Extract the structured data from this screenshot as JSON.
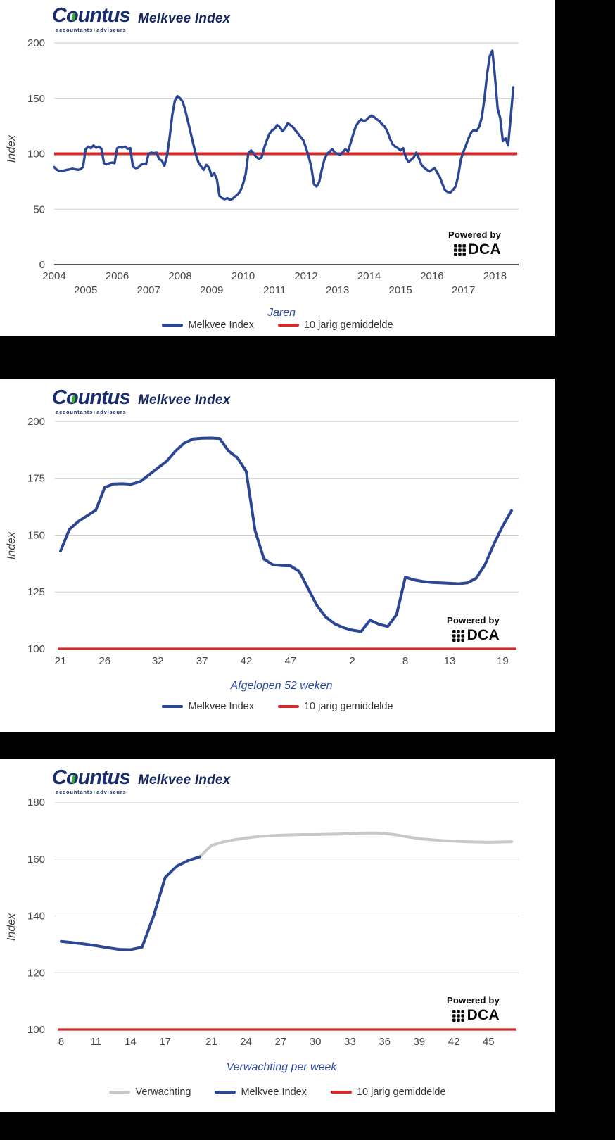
{
  "branding": {
    "logo_prefix": "C",
    "logo_o": "o",
    "logo_suffix": "untus",
    "logo_subtext_left": "accountants",
    "logo_subtext_sep": "+",
    "logo_subtext_right": "adviseurs",
    "powered_by": "Powered by",
    "dca": "DCA"
  },
  "colors": {
    "index_line": "#2b4694",
    "average_line": "#d22b2b",
    "forecast_line": "#c8c8c8",
    "grid": "#cccccc",
    "axis_line": "#1a1a1a",
    "axis_text": "#474747",
    "axis_title": "#2b4a9e",
    "card_title": "#16265e",
    "logo_navy": "#1a2e6e",
    "logo_green": "#3faa3a",
    "page_background": "#000000",
    "card_background": "#ffffff"
  },
  "chart_data": [
    {
      "type": "line",
      "title": "Melkvee Index",
      "xlabel": "Jaren",
      "ylabel": "Index",
      "ylim": [
        0,
        207
      ],
      "yticks": [
        0,
        50,
        100,
        150,
        200
      ],
      "xlim": [
        2004,
        2018.75
      ],
      "x_ticks": [
        {
          "label": "2004",
          "x": 2004,
          "row": 0
        },
        {
          "label": "2005",
          "x": 2005,
          "row": 1
        },
        {
          "label": "2006",
          "x": 2006,
          "row": 0
        },
        {
          "label": "2007",
          "x": 2007,
          "row": 1
        },
        {
          "label": "2008",
          "x": 2008,
          "row": 0
        },
        {
          "label": "2009",
          "x": 2009,
          "row": 1
        },
        {
          "label": "2010",
          "x": 2010,
          "row": 0
        },
        {
          "label": "2011",
          "x": 2011,
          "row": 1
        },
        {
          "label": "2012",
          "x": 2012,
          "row": 0
        },
        {
          "label": "2013",
          "x": 2013,
          "row": 1
        },
        {
          "label": "2014",
          "x": 2014,
          "row": 0
        },
        {
          "label": "2015",
          "x": 2015,
          "row": 1
        },
        {
          "label": "2016",
          "x": 2016,
          "row": 0
        },
        {
          "label": "2017",
          "x": 2017,
          "row": 1
        },
        {
          "label": "2018",
          "x": 2018,
          "row": 0
        }
      ],
      "baseline": {
        "label": "10 jarig gemiddelde",
        "value": 100,
        "color": "#d22b2b"
      },
      "series": [
        {
          "name": "Melkvee Index",
          "color": "#2b4694",
          "x_start": 2004,
          "x_step": 0.0833333,
          "values": [
            88,
            85.5,
            84.5,
            84.5,
            85,
            85.5,
            86,
            86.5,
            86,
            85.5,
            86,
            88,
            104,
            106.5,
            105,
            107.5,
            105.5,
            106.5,
            104.5,
            91.5,
            90.5,
            91.5,
            92,
            91.5,
            105,
            106,
            105.5,
            106.5,
            104.5,
            105,
            88.5,
            87,
            87.5,
            90,
            91,
            90.5,
            100,
            101,
            100.5,
            101,
            95,
            94,
            89,
            98,
            115,
            135,
            148,
            152,
            150,
            147,
            139,
            129,
            119,
            109,
            99,
            92,
            88.5,
            85.5,
            90,
            87.5,
            80,
            82.5,
            77,
            62,
            60,
            59,
            60,
            58.5,
            59.5,
            61.5,
            63.5,
            66.5,
            73,
            82,
            100.5,
            103,
            100.5,
            97,
            95.5,
            96.5,
            105,
            112,
            118,
            121,
            122.5,
            126,
            124,
            120.5,
            123,
            127.5,
            126,
            124,
            121,
            118,
            115,
            112,
            105,
            97.5,
            88,
            72.5,
            70.5,
            74.5,
            85.5,
            95,
            100,
            102,
            104,
            101,
            100,
            99,
            101.5,
            104,
            102,
            110,
            118,
            125,
            128.5,
            131,
            129.5,
            130.5,
            133,
            134.5,
            133,
            131,
            129.5,
            126.5,
            124.5,
            120,
            113.5,
            108.5,
            106.5,
            105,
            103,
            105,
            97,
            92.5,
            94.5,
            96.5,
            101,
            96,
            90,
            87.5,
            85.5,
            84,
            85.5,
            87,
            83,
            79,
            72.5,
            67,
            65.5,
            65,
            67.5,
            70.5,
            80,
            95,
            102,
            108,
            114.5,
            119.5,
            121.5,
            120.5,
            124.5,
            133,
            150,
            172,
            188,
            193,
            170,
            141,
            132,
            111.5,
            114,
            107.5,
            133,
            160
          ]
        }
      ],
      "legend": [
        {
          "label": "Melkvee Index",
          "color": "#2b4694"
        },
        {
          "label": "10 jarig gemiddelde",
          "color": "#d22b2b"
        }
      ]
    },
    {
      "type": "line",
      "title": "Melkvee Index",
      "xlabel": "Afgelopen 52 weken",
      "ylabel": "Index",
      "ylim": [
        100,
        200.9
      ],
      "yticks": [
        100,
        125,
        150,
        175,
        200
      ],
      "xlim": [
        0,
        51.8
      ],
      "x_ticks": [
        {
          "label": "21",
          "x": 0,
          "row": 0
        },
        {
          "label": "26",
          "x": 5,
          "row": 0
        },
        {
          "label": "32",
          "x": 11,
          "row": 0
        },
        {
          "label": "37",
          "x": 16,
          "row": 0
        },
        {
          "label": "42",
          "x": 21,
          "row": 0
        },
        {
          "label": "47",
          "x": 26,
          "row": 0
        },
        {
          "label": "2",
          "x": 33,
          "row": 0
        },
        {
          "label": "8",
          "x": 39,
          "row": 0
        },
        {
          "label": "13",
          "x": 44,
          "row": 0
        },
        {
          "label": "19",
          "x": 50,
          "row": 0
        }
      ],
      "baseline": {
        "label": "10 jarig gemiddelde",
        "value": 100,
        "color": "#d22b2b"
      },
      "series": [
        {
          "name": "Melkvee Index",
          "color": "#2b4694",
          "x_start": 0,
          "x_step": 1,
          "values": [
            143,
            152.5,
            156,
            158.5,
            161,
            171,
            172.5,
            172.6,
            172.4,
            173.5,
            176.5,
            179.5,
            182.5,
            187,
            190.5,
            192.3,
            192.6,
            192.7,
            192.5,
            187,
            184,
            178,
            152,
            139.5,
            137,
            136.6,
            136.5,
            134,
            126.5,
            119,
            114,
            111,
            109.3,
            108.2,
            107.6,
            112.6,
            110.8,
            109.8,
            115,
            131.5,
            130.3,
            129.6,
            129.2,
            129,
            128.8,
            128.6,
            129,
            131,
            137,
            146,
            154,
            160.8
          ]
        }
      ],
      "legend": [
        {
          "label": "Melkvee Index",
          "color": "#2b4694"
        },
        {
          "label": "10 jarig gemiddelde",
          "color": "#d22b2b"
        }
      ]
    },
    {
      "type": "line",
      "title": "Melkvee Index",
      "xlabel": "Verwachting per week",
      "ylabel": "Index",
      "ylim": [
        100,
        180.5
      ],
      "yticks": [
        100,
        120,
        140,
        160,
        180
      ],
      "xlim": [
        0,
        39.6
      ],
      "x_ticks": [
        {
          "label": "8",
          "x": 0,
          "row": 0
        },
        {
          "label": "11",
          "x": 3,
          "row": 0
        },
        {
          "label": "14",
          "x": 6,
          "row": 0
        },
        {
          "label": "17",
          "x": 9,
          "row": 0
        },
        {
          "label": "21",
          "x": 13,
          "row": 0
        },
        {
          "label": "24",
          "x": 16,
          "row": 0
        },
        {
          "label": "27",
          "x": 19,
          "row": 0
        },
        {
          "label": "30",
          "x": 22,
          "row": 0
        },
        {
          "label": "33",
          "x": 25,
          "row": 0
        },
        {
          "label": "36",
          "x": 28,
          "row": 0
        },
        {
          "label": "39",
          "x": 31,
          "row": 0
        },
        {
          "label": "42",
          "x": 34,
          "row": 0
        },
        {
          "label": "45",
          "x": 37,
          "row": 0
        }
      ],
      "baseline": {
        "label": "10 jarig gemiddelde",
        "value": 100,
        "color": "#d22b2b"
      },
      "series": [
        {
          "name": "Verwachting",
          "color": "#c8c8c8",
          "x_start": 12,
          "x_step": 1,
          "values": [
            160.8,
            164.8,
            166,
            166.8,
            167.4,
            167.9,
            168.2,
            168.4,
            168.5,
            168.6,
            168.6,
            168.7,
            168.8,
            168.9,
            169.1,
            169.2,
            169,
            168.5,
            167.8,
            167.2,
            166.8,
            166.5,
            166.3,
            166.1,
            166,
            165.9,
            166,
            166.1
          ]
        },
        {
          "name": "Melkvee Index",
          "color": "#2b4694",
          "x_start": 0,
          "x_step": 1,
          "values": [
            131,
            130.6,
            130.1,
            129.5,
            128.8,
            128.2,
            128.1,
            129,
            140,
            153.5,
            157.5,
            159.5,
            160.8
          ]
        }
      ],
      "legend": [
        {
          "label": "Verwachting",
          "color": "#c8c8c8"
        },
        {
          "label": "Melkvee Index",
          "color": "#2b4694"
        },
        {
          "label": "10 jarig gemiddelde",
          "color": "#d22b2b"
        }
      ]
    }
  ]
}
